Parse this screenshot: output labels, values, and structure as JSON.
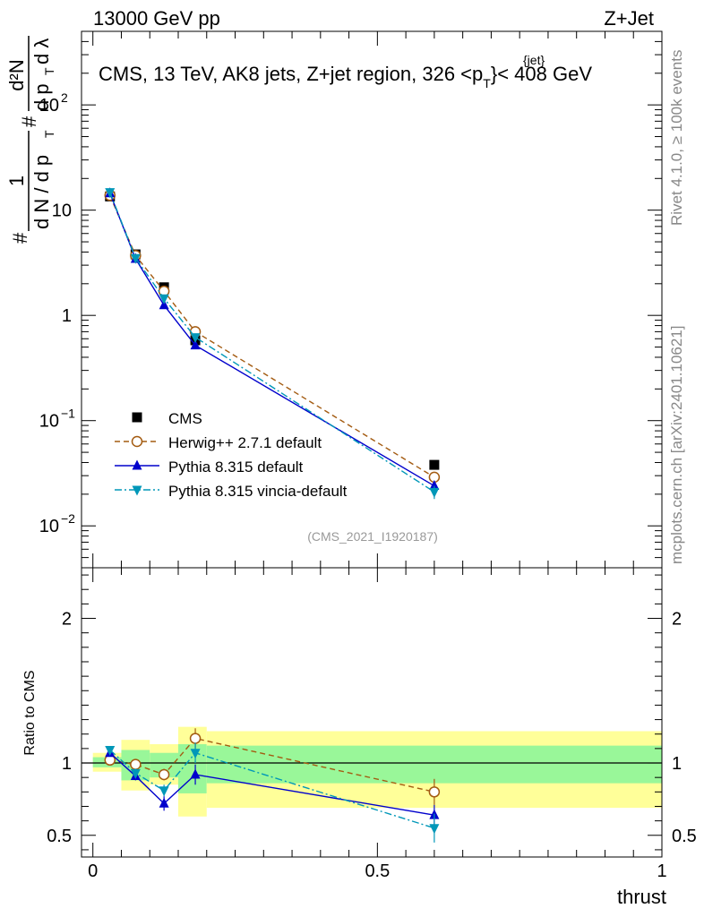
{
  "header": {
    "energy": "13000 GeV pp",
    "process": "Z+Jet"
  },
  "side_labels": {
    "rivet": "Rivet 4.1.0, ≥ 100k events",
    "mcplots": "mcplots.cern.ch [arXiv:2401.10621]"
  },
  "chart_data": [
    {
      "type": "scatter",
      "panel": "main",
      "title": "CMS, 13 TeV, AK8 jets, Z+jet region, 326 <p",
      "title_sup": "{jet}",
      "title_sub": "T",
      "title_end": "}< 408 GeV",
      "analysis_id": "(CMS_2021_I1920187)",
      "yscale": "log",
      "ylim": [
        0.004,
        500
      ],
      "xlim": [
        -0.02,
        1.0
      ],
      "ylabel": {
        "hash": "#",
        "one": "1",
        "dN": "d N / d p",
        "d2N": "d²N",
        "dp": "d p",
        "dl": "d λ",
        "sub": "T"
      },
      "yticks": [
        {
          "value": 0.01,
          "label": "10",
          "sup": "−2"
        },
        {
          "value": 0.1,
          "label": "10",
          "sup": "−1"
        },
        {
          "value": 1,
          "label": "1",
          "sup": ""
        },
        {
          "value": 10,
          "label": "10",
          "sup": ""
        },
        {
          "value": 100,
          "label": "10",
          "sup": "2"
        }
      ],
      "legend": {
        "position": "lower-left",
        "entries": [
          {
            "label": "CMS",
            "series": "cms"
          },
          {
            "label": "Herwig++ 2.7.1 default",
            "series": "herwig"
          },
          {
            "label": "Pythia 8.315 default",
            "series": "pythia"
          },
          {
            "label": "Pythia 8.315 vincia-default",
            "series": "vincia"
          }
        ]
      },
      "series": [
        {
          "name": "cms",
          "color": "#000000",
          "marker": "square",
          "x": [
            0.03,
            0.075,
            0.125,
            0.18,
            0.6
          ],
          "y": [
            13.5,
            3.8,
            1.85,
            0.58,
            0.038
          ],
          "err": [
            0.5,
            0.15,
            0.08,
            0.03,
            0.002
          ]
        },
        {
          "name": "herwig",
          "color": "#a35b11",
          "marker": "open-circle",
          "dash": "6,4",
          "x": [
            0.03,
            0.075,
            0.125,
            0.18,
            0.6
          ],
          "y": [
            13.8,
            3.7,
            1.7,
            0.7,
            0.029
          ],
          "err": [
            0.4,
            0.12,
            0.06,
            0.03,
            0.002
          ]
        },
        {
          "name": "pythia",
          "color": "#0000cc",
          "marker": "triangle-up",
          "x": [
            0.03,
            0.075,
            0.125,
            0.18,
            0.6
          ],
          "y": [
            14.5,
            3.45,
            1.25,
            0.52,
            0.024
          ],
          "err": [
            0.4,
            0.1,
            0.05,
            0.03,
            0.002
          ]
        },
        {
          "name": "vincia",
          "color": "#0097b8",
          "marker": "triangle-down",
          "dash": "8,3,2,3",
          "x": [
            0.03,
            0.075,
            0.125,
            0.18,
            0.6
          ],
          "y": [
            14.8,
            3.5,
            1.45,
            0.62,
            0.021
          ],
          "err": [
            0.4,
            0.1,
            0.05,
            0.03,
            0.003
          ]
        }
      ]
    },
    {
      "type": "scatter",
      "panel": "ratio",
      "ylabel": "Ratio to CMS",
      "xlabel": "thrust",
      "xlim": [
        -0.02,
        1.0
      ],
      "ylim": [
        0.35,
        2.35
      ],
      "xticks": [
        {
          "value": 0,
          "label": "0"
        },
        {
          "value": 0.5,
          "label": "0.5"
        },
        {
          "value": 1,
          "label": "1"
        }
      ],
      "yticks": [
        {
          "value": 0.5,
          "label": "0.5"
        },
        {
          "value": 1,
          "label": "1"
        },
        {
          "value": 2,
          "label": "2"
        }
      ],
      "bands": {
        "bins": [
          [
            0.0,
            0.05
          ],
          [
            0.05,
            0.1
          ],
          [
            0.1,
            0.15
          ],
          [
            0.15,
            0.2
          ],
          [
            0.2,
            1.0
          ]
        ],
        "yellow": [
          [
            0.94,
            1.07
          ],
          [
            0.81,
            1.16
          ],
          [
            0.85,
            1.13
          ],
          [
            0.63,
            1.25
          ],
          [
            0.69,
            1.22
          ]
        ],
        "green": [
          [
            0.97,
            1.04
          ],
          [
            0.88,
            1.09
          ],
          [
            0.9,
            1.07
          ],
          [
            0.79,
            1.13
          ],
          [
            0.86,
            1.12
          ]
        ],
        "yellow_color": "#ffff99",
        "green_color": "#99f799"
      },
      "reference_line": 1.0,
      "series": [
        {
          "name": "herwig",
          "color": "#a35b11",
          "marker": "open-circle",
          "dash": "6,4",
          "x": [
            0.03,
            0.075,
            0.125,
            0.18,
            0.6
          ],
          "y": [
            1.02,
            0.99,
            0.92,
            1.17,
            0.8
          ],
          "err": [
            0.02,
            0.03,
            0.04,
            0.07,
            0.09
          ]
        },
        {
          "name": "pythia",
          "color": "#0000cc",
          "marker": "triangle-up",
          "x": [
            0.03,
            0.075,
            0.125,
            0.18,
            0.6
          ],
          "y": [
            1.07,
            0.91,
            0.72,
            0.92,
            0.64
          ],
          "err": [
            0.02,
            0.03,
            0.05,
            0.07,
            0.07
          ]
        },
        {
          "name": "vincia",
          "color": "#0097b8",
          "marker": "triangle-down",
          "dash": "8,3,2,3",
          "x": [
            0.03,
            0.075,
            0.125,
            0.18,
            0.6
          ],
          "y": [
            1.09,
            0.93,
            0.81,
            1.07,
            0.55
          ],
          "err": [
            0.02,
            0.03,
            0.04,
            0.07,
            0.1
          ]
        }
      ]
    }
  ]
}
